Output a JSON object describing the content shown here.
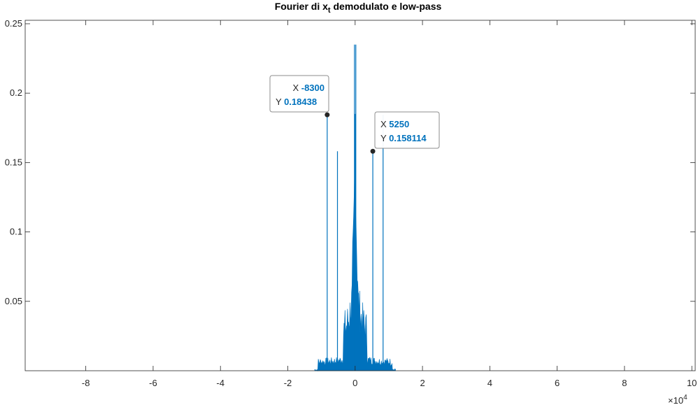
{
  "chart_data": {
    "type": "line",
    "title_main": "Fourier di x",
    "title_sub": "t",
    "title_rest": " demodulato e low-pass",
    "xlabel": "",
    "ylabel": "",
    "xlim": [
      -98000,
      101000
    ],
    "ylim": [
      0,
      0.2525
    ],
    "x_ticks": [
      -80000,
      -60000,
      -40000,
      -20000,
      0,
      20000,
      40000,
      60000,
      80000,
      100000
    ],
    "x_tick_labels": [
      "-8",
      "-6",
      "-4",
      "-2",
      "0",
      "2",
      "4",
      "6",
      "8",
      "10"
    ],
    "y_ticks": [
      0.05,
      0.1,
      0.15,
      0.2,
      0.25
    ],
    "y_tick_labels": [
      "0.05",
      "0.1",
      "0.15",
      "0.2",
      "0.25"
    ],
    "x_exponent_base": "×10",
    "x_exponent_power": "4",
    "grid": false,
    "line_color": "#0072BD",
    "peaks": [
      {
        "x": -8300,
        "y": 0.18438
      },
      {
        "x": -5250,
        "y": 0.158114
      },
      {
        "x": 5250,
        "y": 0.158114
      },
      {
        "x": 8300,
        "y": 0.18438
      },
      {
        "x": -200,
        "y": 0.235
      },
      {
        "x": 200,
        "y": 0.235
      },
      {
        "x": 0,
        "y": 0.185
      }
    ],
    "datatips": [
      {
        "x_label": "X",
        "x_value": "-8300",
        "y_label": "Y",
        "y_value": "0.18438",
        "x": -8300,
        "y": 0.18438
      },
      {
        "x_label": "X",
        "x_value": "5250",
        "y_label": "Y",
        "y_value": "0.158114",
        "x": 5250,
        "y": 0.158114
      }
    ]
  }
}
